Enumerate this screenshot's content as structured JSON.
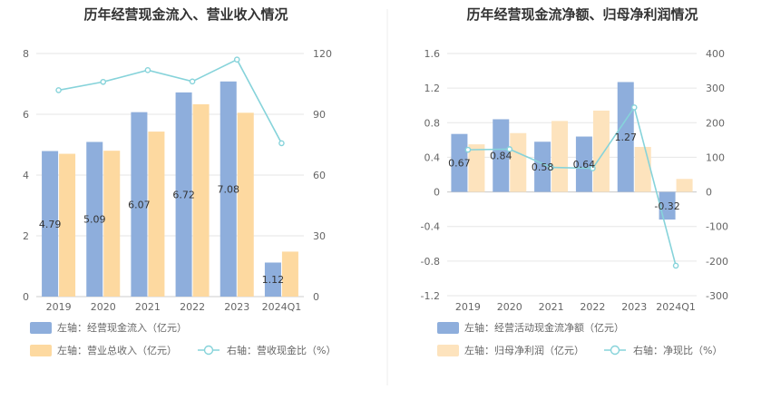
{
  "chart_data": [
    {
      "type": "bar",
      "title": "历年经营现金流入、营业收入情况",
      "categories": [
        "2019",
        "2020",
        "2021",
        "2022",
        "2023",
        "2024Q1"
      ],
      "left_axis": {
        "min": 0,
        "max": 8,
        "ticks": [
          "0",
          "2",
          "4",
          "6",
          "8"
        ]
      },
      "right_axis": {
        "min": 0,
        "max": 120,
        "ticks": [
          "0",
          "30",
          "60",
          "90",
          "120"
        ]
      },
      "series": [
        {
          "name": "左轴：经营现金流入（亿元）",
          "kind": "bar",
          "axis": "left",
          "color": "#8eaedc",
          "values": [
            4.79,
            5.09,
            6.07,
            6.72,
            7.08,
            1.12
          ],
          "labels": [
            "4.79",
            "5.09",
            "6.07",
            "6.72",
            "7.08",
            "1.12"
          ]
        },
        {
          "name": "左轴：营业总收入（亿元）",
          "kind": "bar",
          "axis": "left",
          "color": "#fdd9a0",
          "values": [
            4.7,
            4.8,
            5.43,
            6.33,
            6.05,
            1.48
          ]
        },
        {
          "name": "右轴：营收现金比（%）",
          "kind": "line",
          "axis": "right",
          "color": "#86d3da",
          "values": [
            101.9,
            106.0,
            111.8,
            106.2,
            117.0,
            75.7
          ]
        }
      ]
    },
    {
      "type": "bar",
      "title": "历年经营现金流净额、归母净利润情况",
      "categories": [
        "2019",
        "2020",
        "2021",
        "2022",
        "2023",
        "2024Q1"
      ],
      "left_axis": {
        "min": -1.2,
        "max": 1.6,
        "ticks": [
          "-1.2",
          "-0.8",
          "-0.4",
          "0",
          "0.4",
          "0.8",
          "1.2",
          "1.6"
        ]
      },
      "right_axis": {
        "min": -300,
        "max": 400,
        "ticks": [
          "-300",
          "-200",
          "-100",
          "0",
          "100",
          "200",
          "300",
          "400"
        ]
      },
      "series": [
        {
          "name": "左轴：经营活动现金流净额（亿元）",
          "kind": "bar",
          "axis": "left",
          "color": "#8eaedc",
          "values": [
            0.67,
            0.84,
            0.58,
            0.64,
            1.27,
            -0.32
          ],
          "labels": [
            "0.67",
            "0.84",
            "0.58",
            "0.64",
            "1.27",
            "-0.32"
          ]
        },
        {
          "name": "左轴：归母净利润（亿元）",
          "kind": "bar",
          "axis": "left",
          "color": "#fde3bd",
          "values": [
            0.55,
            0.68,
            0.82,
            0.94,
            0.52,
            0.15
          ]
        },
        {
          "name": "右轴：净现比（%）",
          "kind": "line",
          "axis": "right",
          "color": "#86d3da",
          "values": [
            121.8,
            123.5,
            70.7,
            68.1,
            244.2,
            -213.3
          ]
        }
      ]
    }
  ]
}
